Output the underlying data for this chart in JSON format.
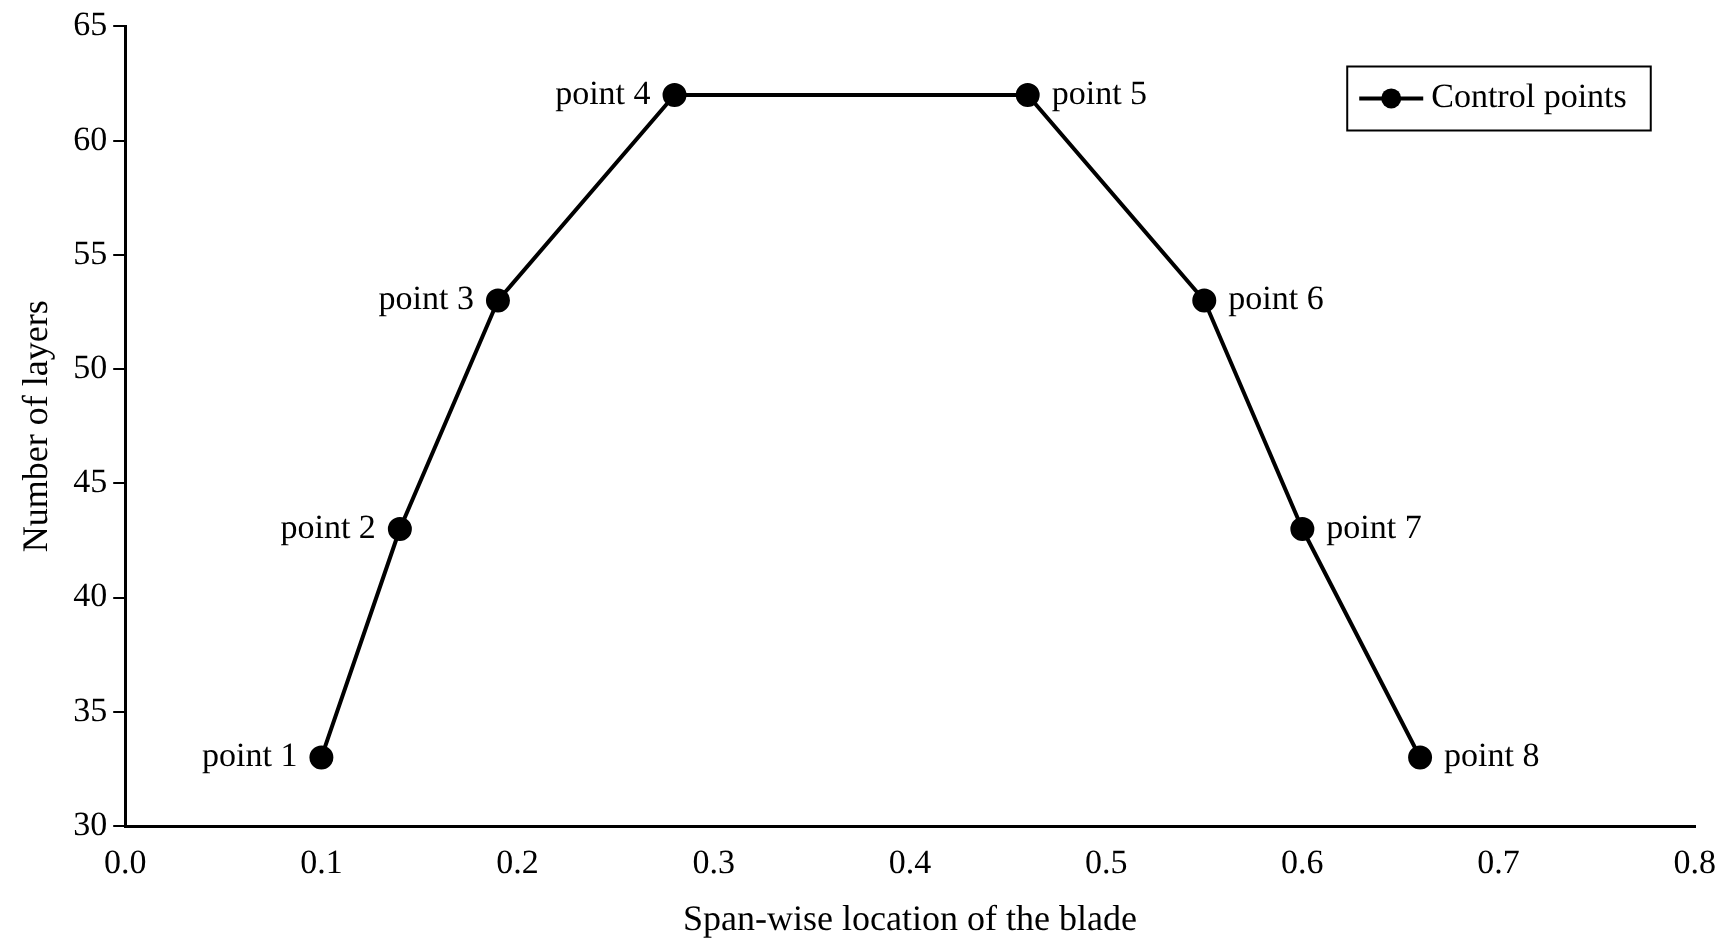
{
  "chart_data": {
    "type": "line",
    "xlabel": "Span-wise location of the blade",
    "ylabel": "Number of layers",
    "x": [
      0.1,
      0.14,
      0.19,
      0.28,
      0.46,
      0.55,
      0.6,
      0.66
    ],
    "series": [
      {
        "name": "Control points",
        "color": "#000000",
        "values": [
          33,
          43,
          53,
          62,
          62,
          53,
          43,
          33
        ]
      }
    ],
    "xlim": [
      0,
      0.8
    ],
    "xticks": [
      {
        "value": 0,
        "label": "0.0"
      },
      0.1,
      0.2,
      0.3,
      0.4,
      0.5,
      0.6,
      0.7,
      0.8
    ],
    "ylim": [
      30,
      65
    ],
    "yticks": [
      30,
      35,
      40,
      45,
      50,
      55,
      60,
      65
    ],
    "grid": false,
    "legend": "top right",
    "marker": "circle",
    "line_style": "solid",
    "annotations": [
      {
        "text": "point 1",
        "x": 0.1,
        "y": 33
      },
      {
        "text": "point 2",
        "x": 0.14,
        "y": 43
      },
      {
        "text": "point 3",
        "x": 0.19,
        "y": 53
      },
      {
        "text": "point 4",
        "x": 0.28,
        "y": 62
      },
      {
        "text": "point 5",
        "x": 0.46,
        "y": 62
      },
      {
        "text": "point 6",
        "x": 0.55,
        "y": 53
      },
      {
        "text": "point 7",
        "x": 0.6,
        "y": 43
      },
      {
        "text": "point 8",
        "x": 0.66,
        "y": 33
      }
    ]
  }
}
